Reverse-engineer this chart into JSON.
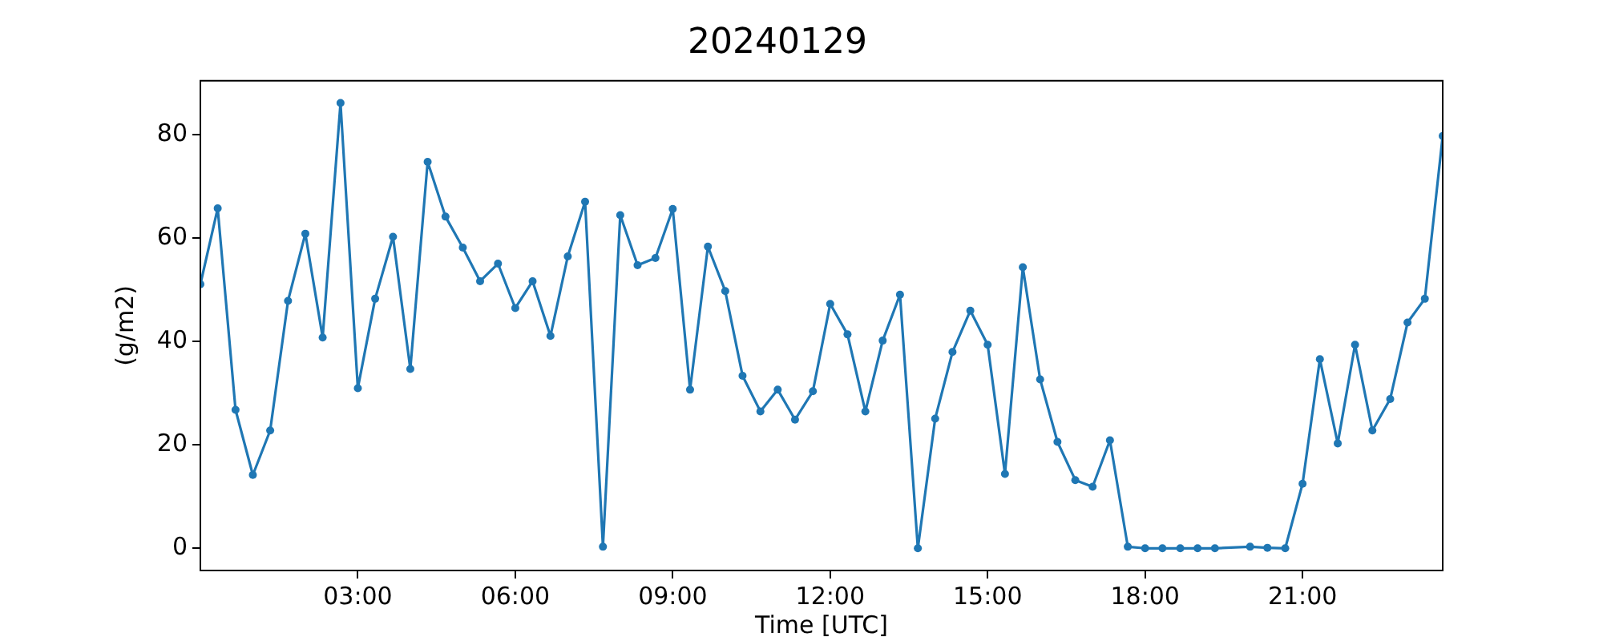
{
  "chart_data": {
    "type": "line",
    "title": "20240129",
    "xlabel": "Time [UTC]",
    "ylabel": "(g/m2)",
    "x": [
      0,
      0.33,
      0.67,
      1,
      1.33,
      1.67,
      2,
      2.33,
      2.67,
      3,
      3.33,
      3.67,
      4,
      4.33,
      4.67,
      5,
      5.33,
      5.67,
      6,
      6.33,
      6.67,
      7,
      7.33,
      7.67,
      8,
      8.33,
      8.67,
      9,
      9.33,
      9.67,
      10,
      10.33,
      10.67,
      11,
      11.33,
      11.67,
      12,
      12.33,
      12.67,
      13,
      13.33,
      13.67,
      14,
      14.33,
      14.67,
      15,
      15.33,
      15.67,
      16,
      16.33,
      16.67,
      17,
      17.33,
      17.67,
      18,
      18.33,
      18.67,
      19,
      19.33,
      20,
      20.33,
      20.67,
      21,
      21.33,
      21.67,
      22,
      22.33,
      22.67,
      23,
      23.33,
      23.67
    ],
    "series": [
      {
        "color": "#1f77b4",
        "values": [
          51.1,
          65.8,
          26.8,
          14.2,
          22.8,
          47.9,
          60.9,
          40.8,
          86.2,
          31.0,
          48.3,
          60.3,
          34.7,
          74.8,
          64.2,
          58.2,
          51.7,
          55.1,
          46.5,
          51.7,
          41.1,
          56.5,
          67.1,
          0.3,
          64.5,
          54.8,
          56.2,
          65.7,
          30.7,
          58.4,
          49.8,
          33.4,
          26.5,
          30.7,
          24.9,
          30.4,
          47.3,
          41.4,
          26.5,
          40.2,
          49.1,
          0,
          25.1,
          38.0,
          46.0,
          39.4,
          14.4,
          54.4,
          32.7,
          20.6,
          13.2,
          11.9,
          20.9,
          0.3,
          0,
          0,
          0,
          0,
          0,
          0.3,
          0.1,
          0,
          12.5,
          36.6,
          20.3,
          39.4,
          22.8,
          28.9,
          43.7,
          48.3,
          79.8
        ]
      }
    ],
    "xlim": [
      0,
      23.67
    ],
    "xticks": [
      {
        "value": 3,
        "label": "03:00"
      },
      {
        "value": 6,
        "label": "06:00"
      },
      {
        "value": 9,
        "label": "09:00"
      },
      {
        "value": 12,
        "label": "12:00"
      },
      {
        "value": 15,
        "label": "15:00"
      },
      {
        "value": 18,
        "label": "18:00"
      },
      {
        "value": 21,
        "label": "21:00"
      }
    ],
    "ylim": [
      -4.3,
      90.5
    ],
    "yticks": [
      0,
      20,
      40,
      60,
      80
    ],
    "grid": false,
    "legend": false,
    "marker": "circle",
    "line_style": "solid"
  }
}
